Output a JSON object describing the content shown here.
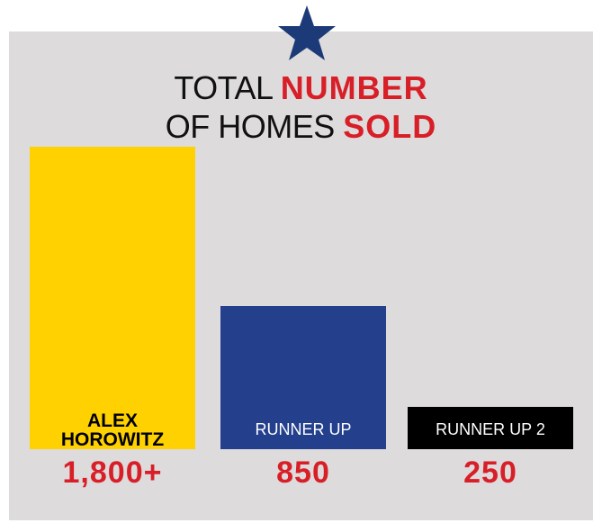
{
  "chart_data": {
    "type": "bar",
    "title": [
      "TOTAL",
      "NUMBER",
      "OF HOMES",
      "SOLD"
    ],
    "categories": [
      "ALEX HOROWITZ",
      "RUNNER UP",
      "RUNNER UP 2"
    ],
    "values": [
      1800,
      850,
      250
    ],
    "value_labels": [
      "1,800+",
      "850",
      "250"
    ],
    "colors": [
      "#ffd100",
      "#243f8c",
      "#000000"
    ],
    "ylim": [
      0,
      1800
    ]
  }
}
